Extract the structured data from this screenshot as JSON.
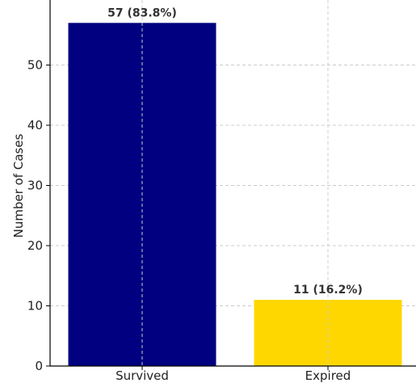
{
  "chart_data": {
    "type": "bar",
    "categories": [
      "Survived",
      "Expired"
    ],
    "values": [
      57,
      11
    ],
    "data_labels": [
      "57 (83.8%)",
      "11 (16.2%)"
    ],
    "colors": [
      "#000080",
      "#FFD700"
    ],
    "xlabel": "",
    "ylabel": "Number of Cases",
    "ylim": [
      0,
      60
    ],
    "yticks": [
      "0",
      "10",
      "20",
      "30",
      "40",
      "50"
    ],
    "grid": true
  }
}
